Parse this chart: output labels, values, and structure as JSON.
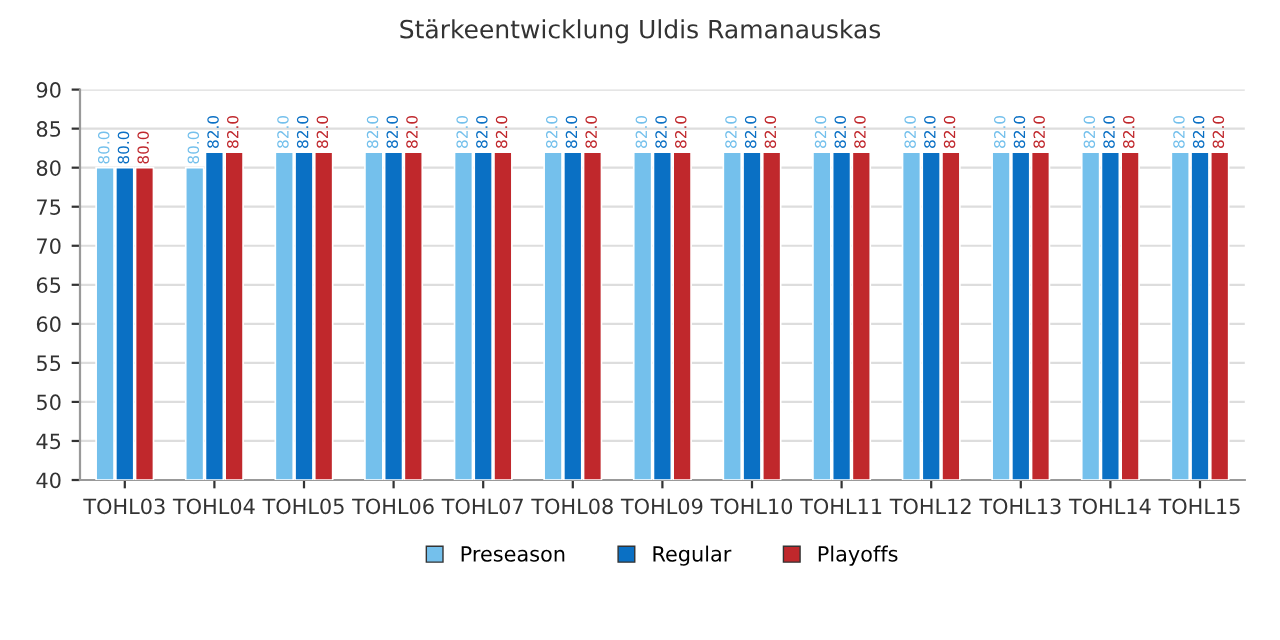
{
  "chart_data": {
    "type": "bar",
    "title": "Stärkeentwicklung Uldis Ramanauskas",
    "categories": [
      "TOHL03",
      "TOHL04",
      "TOHL05",
      "TOHL06",
      "TOHL07",
      "TOHL08",
      "TOHL09",
      "TOHL10",
      "TOHL11",
      "TOHL12",
      "TOHL13",
      "TOHL14",
      "TOHL15"
    ],
    "series": [
      {
        "name": "Preseason",
        "color": "#74c0ec",
        "values": [
          80,
          80,
          82,
          82,
          82,
          82,
          82,
          82,
          82,
          82,
          82,
          82,
          82
        ],
        "value_labels": [
          "80.0",
          "80.0",
          "82.0",
          "82.0",
          "82.0",
          "82.0",
          "82.0",
          "82.0",
          "82.0",
          "82.0",
          "82.0",
          "82.0",
          "82.0"
        ]
      },
      {
        "name": "Regular",
        "color": "#0a70c4",
        "values": [
          80,
          82,
          82,
          82,
          82,
          82,
          82,
          82,
          82,
          82,
          82,
          82,
          82
        ],
        "value_labels": [
          "80.0",
          "82.0",
          "82.0",
          "82.0",
          "82.0",
          "82.0",
          "82.0",
          "82.0",
          "82.0",
          "82.0",
          "82.0",
          "82.0",
          "82.0"
        ]
      },
      {
        "name": "Playoffs",
        "color": "#c0282c",
        "values": [
          80,
          82,
          82,
          82,
          82,
          82,
          82,
          82,
          82,
          82,
          82,
          82,
          82
        ],
        "value_labels": [
          "80.0",
          "82.0",
          "82.0",
          "82.0",
          "82.0",
          "82.0",
          "82.0",
          "82.0",
          "82.0",
          "82.0",
          "82.0",
          "82.0",
          "82.0"
        ]
      }
    ],
    "ylim": [
      40,
      90
    ],
    "yticks": [
      40,
      45,
      50,
      55,
      60,
      65,
      70,
      75,
      80,
      85,
      90
    ],
    "grid": "y",
    "legend": "bottom"
  }
}
